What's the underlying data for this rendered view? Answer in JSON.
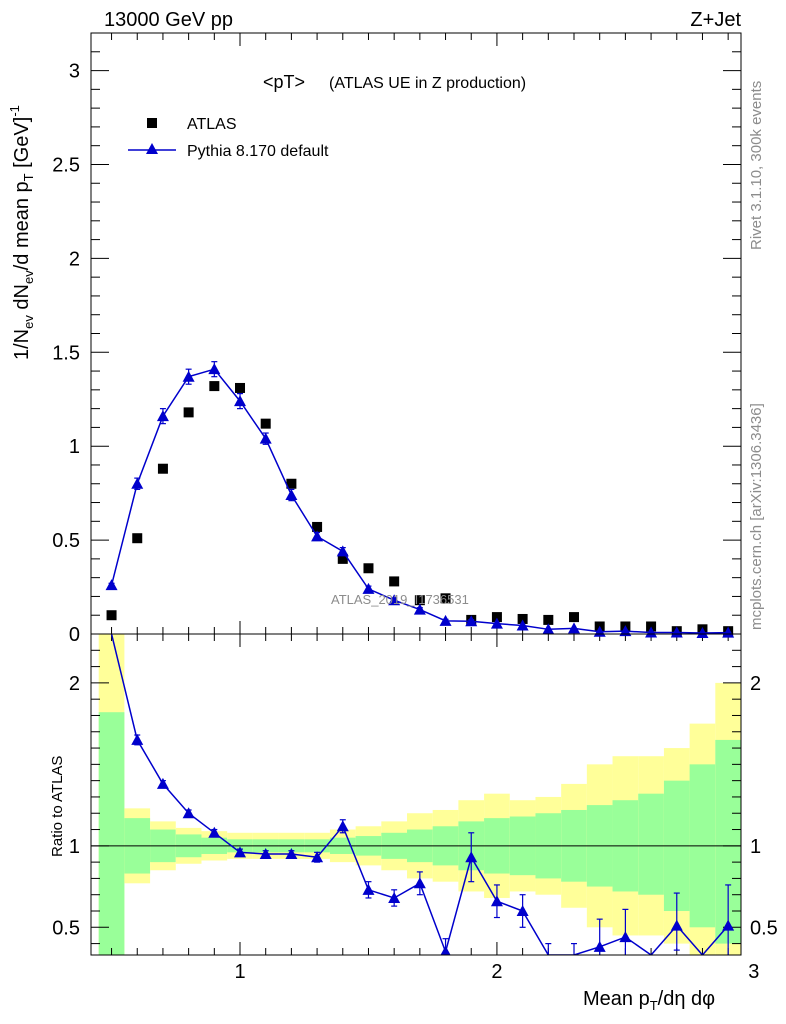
{
  "header": {
    "left": "13000 GeV pp",
    "right": "Z+Jet"
  },
  "side_labels": {
    "rivet": "Rivet 3.1.10,  300k events",
    "mcplots": "mcplots.cern.ch [arXiv:1306.3436]"
  },
  "chart_data": {
    "type": "scatter",
    "title": "<pT>",
    "subtitle": "(ATLAS UE in Z production)",
    "watermark": "ATLAS_2019_I1736531",
    "xlabel": "Mean p_T/dη dφ",
    "ylabel": "1/N_ev dN_ev/d mean p_T [GeV]^-1",
    "xlim": [
      0.42,
      2.95
    ],
    "ylim": [
      0,
      3.2
    ],
    "x_ticks": [
      1,
      2,
      3
    ],
    "y_ticks": [
      0,
      0.5,
      1,
      1.5,
      2,
      2.5,
      3
    ],
    "y_tick_labels": [
      "0",
      "0.5",
      "1",
      "1.5",
      "2",
      "2.5",
      "3"
    ],
    "legend": {
      "placement": "top-left",
      "entries": [
        "ATLAS",
        "Pythia 8.170 default"
      ]
    },
    "colors": {
      "data": "#000000",
      "mc": "#0000cc",
      "band_inner": "#99ff99",
      "band_outer": "#ffff99"
    },
    "series": [
      {
        "name": "ATLAS",
        "marker": "square",
        "x": [
          0.5,
          0.6,
          0.7,
          0.8,
          0.9,
          1.0,
          1.1,
          1.2,
          1.3,
          1.4,
          1.5,
          1.6,
          1.7,
          1.8,
          1.9,
          2.0,
          2.1,
          2.2,
          2.3,
          2.4,
          2.5,
          2.6,
          2.7,
          2.8,
          2.9
        ],
        "y": [
          0.1,
          0.51,
          0.88,
          1.18,
          1.32,
          1.31,
          1.12,
          0.8,
          0.57,
          0.4,
          0.35,
          0.28,
          0.18,
          0.19,
          0.075,
          0.09,
          0.08,
          0.075,
          0.09,
          0.04,
          0.04,
          0.04,
          0.015,
          0.025,
          0.015
        ]
      },
      {
        "name": "Pythia 8.170 default",
        "marker": "triangle",
        "x": [
          0.5,
          0.6,
          0.7,
          0.8,
          0.9,
          1.0,
          1.1,
          1.2,
          1.3,
          1.4,
          1.5,
          1.6,
          1.7,
          1.8,
          1.9,
          2.0,
          2.1,
          2.2,
          2.3,
          2.4,
          2.5,
          2.6,
          2.7,
          2.8,
          2.9
        ],
        "y": [
          0.26,
          0.8,
          1.16,
          1.37,
          1.41,
          1.24,
          1.04,
          0.74,
          0.52,
          0.44,
          0.24,
          0.18,
          0.13,
          0.07,
          0.068,
          0.055,
          0.045,
          0.025,
          0.03,
          0.012,
          0.015,
          0.008,
          0.008,
          0.005,
          0.007
        ],
        "err": [
          0.01,
          0.03,
          0.04,
          0.04,
          0.04,
          0.04,
          0.03,
          0.03,
          0.02,
          0.02,
          0.015,
          0.012,
          0.01,
          0.008,
          0.008,
          0.007,
          0.006,
          0.005,
          0.005,
          0.004,
          0.004,
          0.003,
          0.003,
          0.003,
          0.003
        ]
      }
    ],
    "ratio": {
      "ylabel": "Ratio to ATLAS",
      "ylim": [
        0.33,
        2.3
      ],
      "y_ticks": [
        0.5,
        1,
        2
      ],
      "y_tick_labels": [
        "0.5",
        "1",
        "2"
      ],
      "bins": [
        0.45,
        0.55,
        0.65,
        0.75,
        0.85,
        0.95,
        1.05,
        1.15,
        1.25,
        1.35,
        1.45,
        1.55,
        1.65,
        1.75,
        1.85,
        1.95,
        2.05,
        2.15,
        2.25,
        2.35,
        2.45,
        2.55,
        2.65,
        2.75,
        2.85,
        2.95
      ],
      "band_inner_lo": [
        0.33,
        0.83,
        0.9,
        0.93,
        0.95,
        0.96,
        0.96,
        0.96,
        0.96,
        0.95,
        0.94,
        0.92,
        0.9,
        0.88,
        0.85,
        0.83,
        0.82,
        0.8,
        0.78,
        0.75,
        0.72,
        0.7,
        0.6,
        0.5,
        0.4
      ],
      "band_inner_hi": [
        1.82,
        1.17,
        1.1,
        1.07,
        1.05,
        1.04,
        1.04,
        1.04,
        1.04,
        1.05,
        1.06,
        1.08,
        1.1,
        1.12,
        1.15,
        1.17,
        1.18,
        1.2,
        1.22,
        1.25,
        1.28,
        1.32,
        1.4,
        1.5,
        1.65
      ],
      "band_outer_lo": [
        0.33,
        0.77,
        0.85,
        0.89,
        0.91,
        0.92,
        0.92,
        0.92,
        0.92,
        0.9,
        0.88,
        0.85,
        0.8,
        0.78,
        0.72,
        0.68,
        0.72,
        0.7,
        0.62,
        0.5,
        0.45,
        0.45,
        0.4,
        0.33,
        0.33
      ],
      "band_outer_hi": [
        2.3,
        1.23,
        1.15,
        1.11,
        1.09,
        1.08,
        1.08,
        1.08,
        1.08,
        1.1,
        1.12,
        1.15,
        1.2,
        1.22,
        1.28,
        1.32,
        1.28,
        1.3,
        1.38,
        1.5,
        1.55,
        1.55,
        1.6,
        1.75,
        2.0
      ],
      "series": {
        "name": "Pythia 8.170 default",
        "x": [
          0.5,
          0.6,
          0.7,
          0.8,
          0.9,
          1.0,
          1.1,
          1.2,
          1.3,
          1.4,
          1.5,
          1.6,
          1.7,
          1.8,
          1.9,
          2.0,
          2.1,
          2.2,
          2.3,
          2.4,
          2.5,
          2.6,
          2.7,
          2.8,
          2.9
        ],
        "y": [
          2.55,
          1.65,
          1.38,
          1.2,
          1.08,
          0.96,
          0.95,
          0.95,
          0.93,
          1.12,
          0.73,
          0.68,
          0.77,
          0.35,
          0.93,
          0.66,
          0.6,
          0.3,
          0.3,
          0.38,
          0.44,
          0.2,
          0.51,
          0.2,
          0.51
        ],
        "err_lo": [
          0.05,
          0.03,
          0.02,
          0.02,
          0.02,
          0.02,
          0.02,
          0.02,
          0.03,
          0.04,
          0.05,
          0.05,
          0.07,
          0.1,
          0.15,
          0.1,
          0.1,
          0.1,
          0.1,
          0.1,
          0.12,
          0.1,
          0.15,
          0.1,
          0.2
        ],
        "err_hi": [
          0.05,
          0.03,
          0.02,
          0.02,
          0.02,
          0.02,
          0.02,
          0.02,
          0.03,
          0.04,
          0.05,
          0.05,
          0.07,
          0.08,
          0.15,
          0.1,
          0.1,
          0.1,
          0.1,
          0.17,
          0.17,
          0.1,
          0.2,
          0.1,
          0.25
        ]
      }
    }
  }
}
